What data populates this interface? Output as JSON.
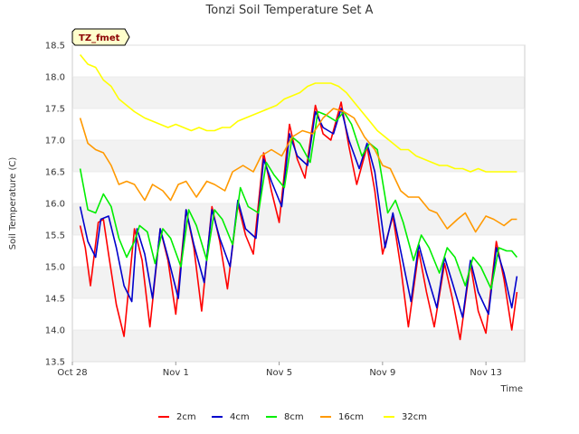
{
  "chart_data": {
    "type": "line",
    "title": "Tonzi Soil Temperature Set A",
    "xlabel": "Time",
    "ylabel": "Soil Temperature (C)",
    "badge": "TZ_fmet",
    "xlim": [
      0,
      17.5
    ],
    "ylim": [
      13.5,
      18.5
    ],
    "yticks": [
      "13.5",
      "14.0",
      "14.5",
      "15.0",
      "15.5",
      "16.0",
      "16.5",
      "17.0",
      "17.5",
      "18.0",
      "18.5"
    ],
    "xticks": [
      {
        "label": "Oct 28",
        "value": 0
      },
      {
        "label": "Nov 1",
        "value": 4
      },
      {
        "label": "Nov 5",
        "value": 8
      },
      {
        "label": "Nov 9",
        "value": 12
      },
      {
        "label": "Nov 13",
        "value": 16
      }
    ],
    "grid": true,
    "legend_position": "bottom",
    "series": [
      {
        "name": "2cm",
        "color": "#ff0000",
        "x": [
          0.3,
          0.5,
          0.7,
          1.0,
          1.2,
          1.4,
          1.7,
          2.0,
          2.4,
          2.7,
          3.0,
          3.4,
          3.7,
          4.0,
          4.4,
          4.7,
          5.0,
          5.4,
          5.7,
          6.0,
          6.4,
          6.7,
          7.0,
          7.4,
          7.7,
          8.0,
          8.4,
          8.7,
          9.0,
          9.4,
          9.7,
          10.0,
          10.4,
          10.7,
          11.0,
          11.4,
          11.7,
          12.0,
          12.4,
          12.7,
          13.0,
          13.4,
          13.7,
          14.0,
          14.4,
          14.7,
          15.0,
          15.4,
          15.7,
          16.0,
          16.4,
          16.7,
          17.0,
          17.2
        ],
        "y": [
          15.65,
          15.3,
          14.7,
          15.7,
          15.75,
          15.2,
          14.4,
          13.9,
          15.6,
          15.1,
          14.05,
          15.6,
          15.1,
          14.25,
          15.9,
          15.3,
          14.3,
          15.95,
          15.4,
          14.65,
          16.0,
          15.5,
          15.2,
          16.8,
          16.2,
          15.7,
          17.25,
          16.7,
          16.4,
          17.55,
          17.1,
          17.0,
          17.6,
          16.9,
          16.3,
          16.9,
          16.2,
          15.2,
          15.8,
          15.0,
          14.05,
          15.25,
          14.6,
          14.05,
          15.05,
          14.5,
          13.85,
          15.05,
          14.3,
          13.95,
          15.4,
          14.8,
          14.0,
          14.6
        ]
      },
      {
        "name": "4cm",
        "color": "#0000cc",
        "x": [
          0.3,
          0.6,
          0.9,
          1.1,
          1.4,
          1.7,
          2.0,
          2.3,
          2.5,
          2.8,
          3.1,
          3.4,
          3.7,
          4.1,
          4.4,
          4.7,
          5.1,
          5.4,
          5.7,
          6.1,
          6.4,
          6.7,
          7.1,
          7.4,
          7.7,
          8.1,
          8.4,
          8.7,
          9.1,
          9.4,
          9.7,
          10.1,
          10.4,
          10.7,
          11.1,
          11.4,
          11.7,
          12.1,
          12.4,
          12.7,
          13.1,
          13.4,
          13.7,
          14.1,
          14.4,
          14.7,
          15.1,
          15.4,
          15.7,
          16.1,
          16.4,
          16.7,
          17.0,
          17.2
        ],
        "y": [
          15.95,
          15.4,
          15.15,
          15.75,
          15.8,
          15.3,
          14.7,
          14.45,
          15.6,
          15.2,
          14.5,
          15.6,
          15.15,
          14.5,
          15.9,
          15.35,
          14.75,
          15.9,
          15.45,
          15.0,
          16.05,
          15.6,
          15.45,
          16.7,
          16.35,
          15.95,
          17.1,
          16.75,
          16.6,
          17.45,
          17.2,
          17.1,
          17.5,
          17.0,
          16.55,
          16.95,
          16.5,
          15.3,
          15.85,
          15.25,
          14.45,
          15.35,
          14.9,
          14.35,
          15.15,
          14.75,
          14.2,
          15.1,
          14.6,
          14.25,
          15.3,
          14.9,
          14.35,
          14.85
        ]
      },
      {
        "name": "8cm",
        "color": "#00ee00",
        "x": [
          0.3,
          0.6,
          0.9,
          1.2,
          1.5,
          1.8,
          2.1,
          2.4,
          2.6,
          2.9,
          3.2,
          3.5,
          3.8,
          4.2,
          4.5,
          4.8,
          5.2,
          5.5,
          5.8,
          6.2,
          6.5,
          6.8,
          7.2,
          7.5,
          7.8,
          8.2,
          8.5,
          8.8,
          9.2,
          9.5,
          9.8,
          10.2,
          10.5,
          10.8,
          11.2,
          11.5,
          11.8,
          12.2,
          12.5,
          12.8,
          13.2,
          13.5,
          13.8,
          14.2,
          14.5,
          14.8,
          15.2,
          15.5,
          15.8,
          16.2,
          16.5,
          16.8,
          17.0,
          17.2
        ],
        "y": [
          16.55,
          15.9,
          15.85,
          16.15,
          15.95,
          15.45,
          15.15,
          15.4,
          15.65,
          15.55,
          15.05,
          15.6,
          15.45,
          15.0,
          15.9,
          15.65,
          15.1,
          15.9,
          15.75,
          15.35,
          16.25,
          15.95,
          15.85,
          16.65,
          16.45,
          16.25,
          17.05,
          16.95,
          16.65,
          17.45,
          17.4,
          17.3,
          17.45,
          17.25,
          16.75,
          16.95,
          16.85,
          15.85,
          16.05,
          15.7,
          15.1,
          15.5,
          15.3,
          14.9,
          15.3,
          15.15,
          14.7,
          15.15,
          15.0,
          14.65,
          15.3,
          15.25,
          15.25,
          15.15
        ]
      },
      {
        "name": "16cm",
        "color": "#ff9900",
        "x": [
          0.3,
          0.6,
          0.9,
          1.2,
          1.5,
          1.8,
          2.1,
          2.4,
          2.8,
          3.1,
          3.5,
          3.8,
          4.1,
          4.4,
          4.8,
          5.2,
          5.5,
          5.9,
          6.2,
          6.6,
          7.0,
          7.3,
          7.7,
          8.1,
          8.5,
          8.9,
          9.3,
          9.7,
          10.1,
          10.5,
          10.9,
          11.3,
          11.7,
          12.0,
          12.3,
          12.7,
          13.0,
          13.4,
          13.8,
          14.1,
          14.5,
          14.9,
          15.2,
          15.6,
          16.0,
          16.3,
          16.7,
          17.0,
          17.2
        ],
        "y": [
          17.35,
          16.95,
          16.85,
          16.8,
          16.6,
          16.3,
          16.35,
          16.3,
          16.05,
          16.3,
          16.2,
          16.05,
          16.3,
          16.35,
          16.1,
          16.35,
          16.3,
          16.2,
          16.5,
          16.6,
          16.5,
          16.75,
          16.85,
          16.75,
          17.05,
          17.15,
          17.1,
          17.35,
          17.5,
          17.45,
          17.35,
          17.05,
          16.85,
          16.6,
          16.55,
          16.2,
          16.1,
          16.1,
          15.9,
          15.85,
          15.6,
          15.75,
          15.85,
          15.55,
          15.8,
          15.75,
          15.65,
          15.75,
          15.75
        ]
      },
      {
        "name": "32cm",
        "color": "#ffff00",
        "x": [
          0.3,
          0.6,
          0.9,
          1.2,
          1.5,
          1.8,
          2.1,
          2.4,
          2.8,
          3.1,
          3.4,
          3.7,
          4.0,
          4.3,
          4.6,
          4.9,
          5.2,
          5.5,
          5.8,
          6.1,
          6.4,
          6.7,
          7.0,
          7.3,
          7.6,
          7.9,
          8.2,
          8.5,
          8.8,
          9.1,
          9.4,
          9.7,
          10.0,
          10.3,
          10.6,
          10.9,
          11.2,
          11.5,
          11.8,
          12.1,
          12.4,
          12.7,
          13.0,
          13.3,
          13.6,
          13.9,
          14.2,
          14.5,
          14.8,
          15.1,
          15.4,
          15.7,
          16.0,
          16.3,
          16.6,
          16.9,
          17.2
        ],
        "y": [
          18.35,
          18.2,
          18.15,
          17.95,
          17.85,
          17.65,
          17.55,
          17.45,
          17.35,
          17.3,
          17.25,
          17.2,
          17.25,
          17.2,
          17.15,
          17.2,
          17.15,
          17.15,
          17.2,
          17.2,
          17.3,
          17.35,
          17.4,
          17.45,
          17.5,
          17.55,
          17.65,
          17.7,
          17.75,
          17.85,
          17.9,
          17.9,
          17.9,
          17.85,
          17.75,
          17.6,
          17.45,
          17.3,
          17.15,
          17.05,
          16.95,
          16.85,
          16.85,
          16.75,
          16.7,
          16.65,
          16.6,
          16.6,
          16.55,
          16.55,
          16.5,
          16.55,
          16.5,
          16.5,
          16.5,
          16.5,
          16.5
        ]
      }
    ]
  }
}
